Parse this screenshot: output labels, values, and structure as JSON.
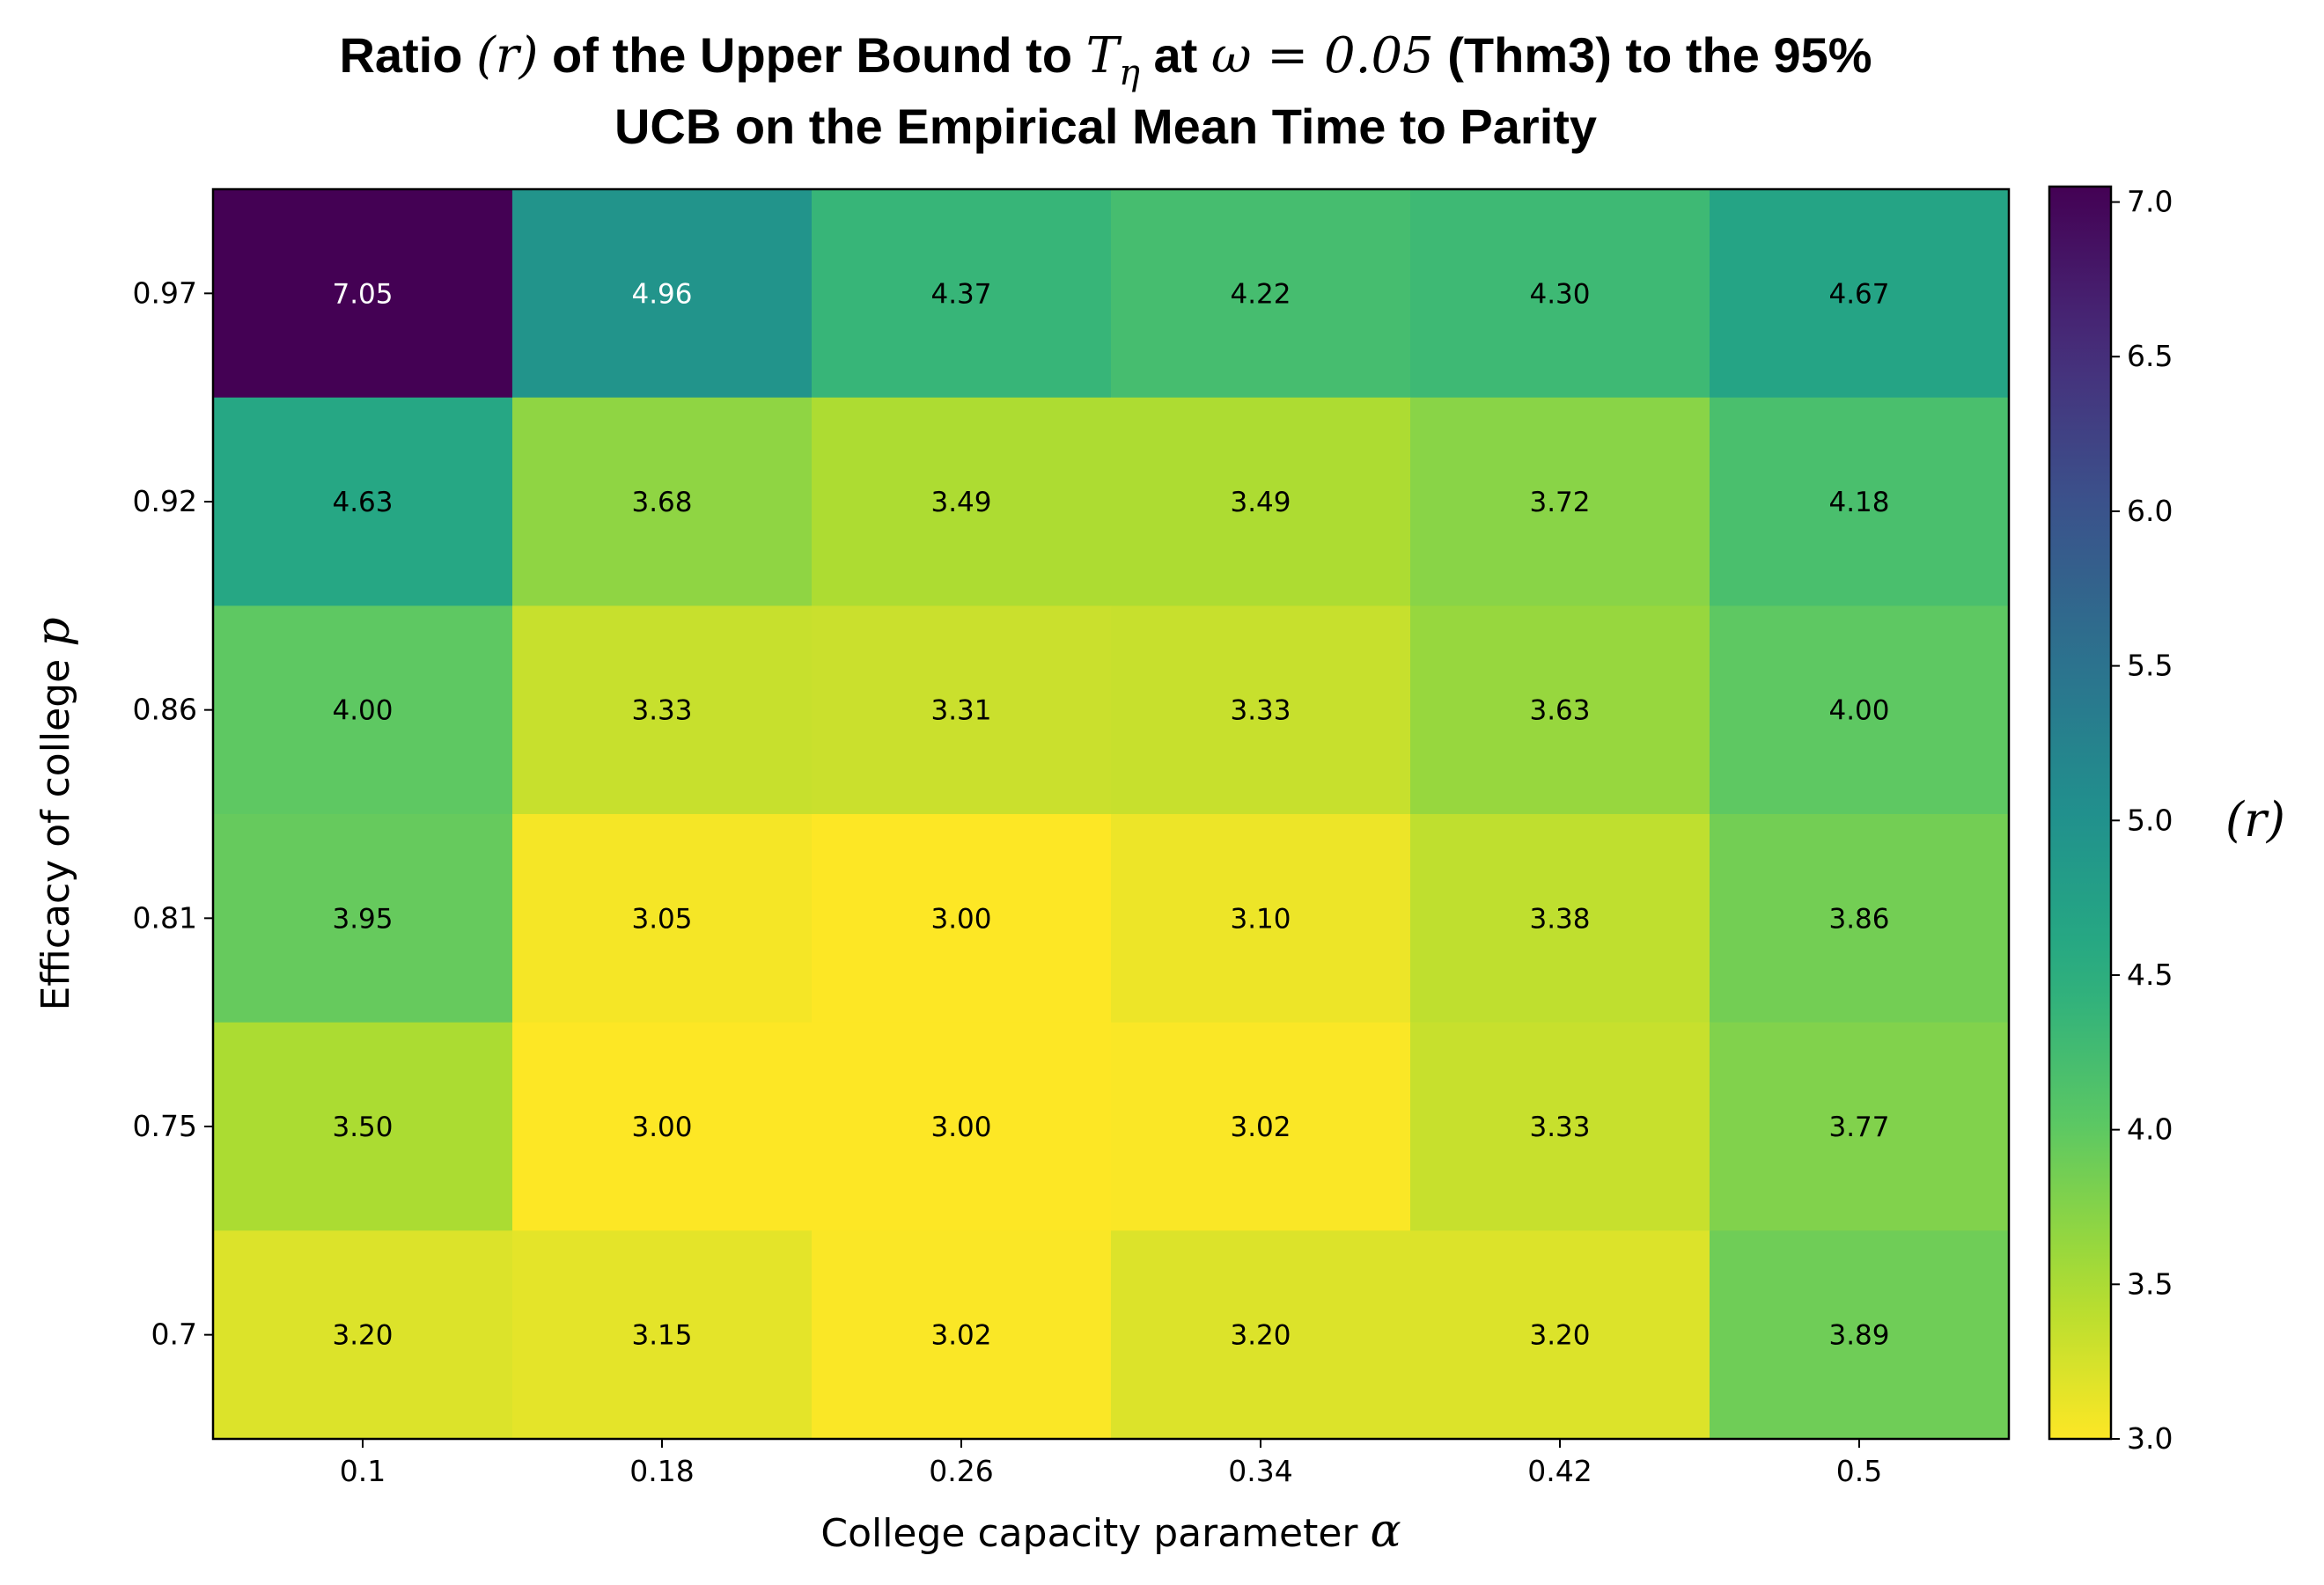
{
  "chart_data": {
    "type": "heatmap",
    "title": {
      "line1": {
        "a": "Ratio ",
        "m1": "(r)",
        "b": " of the Upper Bound to ",
        "m2": "T",
        "m2_sub": "η",
        "c": " at ",
        "m3": "ω = 0.05",
        "d": " (Thm3) to the 95%"
      },
      "line2": "UCB on the Empirical Mean Time to Parity"
    },
    "xlabel": {
      "text": "College capacity parameter ",
      "symbol": "α"
    },
    "ylabel": {
      "text": "Efficacy of college ",
      "symbol": "p"
    },
    "x_categories": [
      "0.1",
      "0.18",
      "0.26",
      "0.34",
      "0.42",
      "0.5"
    ],
    "y_categories": [
      "0.97",
      "0.92",
      "0.86",
      "0.81",
      "0.75",
      "0.7"
    ],
    "values": [
      [
        7.05,
        4.96,
        4.37,
        4.22,
        4.3,
        4.67
      ],
      [
        4.63,
        3.68,
        3.49,
        3.49,
        3.72,
        4.18
      ],
      [
        4.0,
        3.33,
        3.31,
        3.33,
        3.63,
        4.0
      ],
      [
        3.95,
        3.05,
        3.0,
        3.1,
        3.38,
        3.86
      ],
      [
        3.5,
        3.0,
        3.0,
        3.02,
        3.33,
        3.77
      ],
      [
        3.2,
        3.15,
        3.02,
        3.2,
        3.2,
        3.89
      ]
    ],
    "colorbar": {
      "label": "(r)",
      "min": 3.0,
      "max": 7.05,
      "ticks": [
        "3.0",
        "3.5",
        "4.0",
        "4.5",
        "5.0",
        "5.5",
        "6.0",
        "6.5",
        "7.0"
      ],
      "colormap": "viridis_r"
    }
  }
}
